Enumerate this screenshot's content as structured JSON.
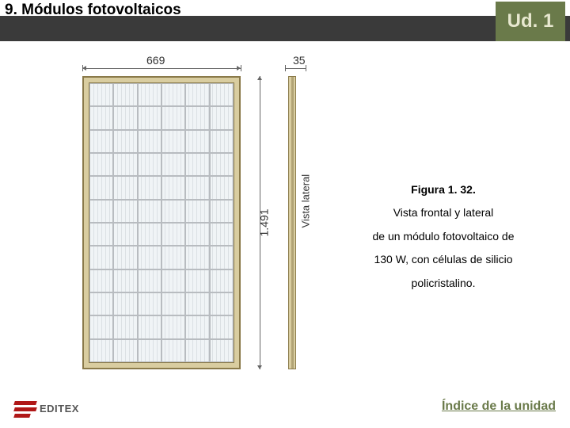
{
  "header": {
    "section_title": "9. Módulos fotovoltaicos",
    "unit_badge": "Ud. 1",
    "bar_color": "#3a3a3a",
    "badge_color": "#6a7a4a"
  },
  "figure": {
    "width_mm_label": "669",
    "depth_mm_label": "35",
    "height_mm_label": "1.491",
    "side_view_label": "Vista lateral",
    "panel": {
      "cols": 6,
      "rows": 12,
      "frame_color": "#d9cda0",
      "frame_border": "#8a7a4a",
      "cell_bg": "#f0f4f6",
      "cell_border": "#b8bcc0"
    }
  },
  "caption": {
    "figure_number": "Figura 1. 32.",
    "line1": "Vista frontal y lateral",
    "line2": "de un módulo fotovoltaico de",
    "line3": "130 W, con células de silicio",
    "line4": "policristalino."
  },
  "footer": {
    "logo_text": "EDITEX",
    "logo_color": "#b01818",
    "index_link": "Índice de la unidad",
    "link_color": "#6a7a4a"
  }
}
